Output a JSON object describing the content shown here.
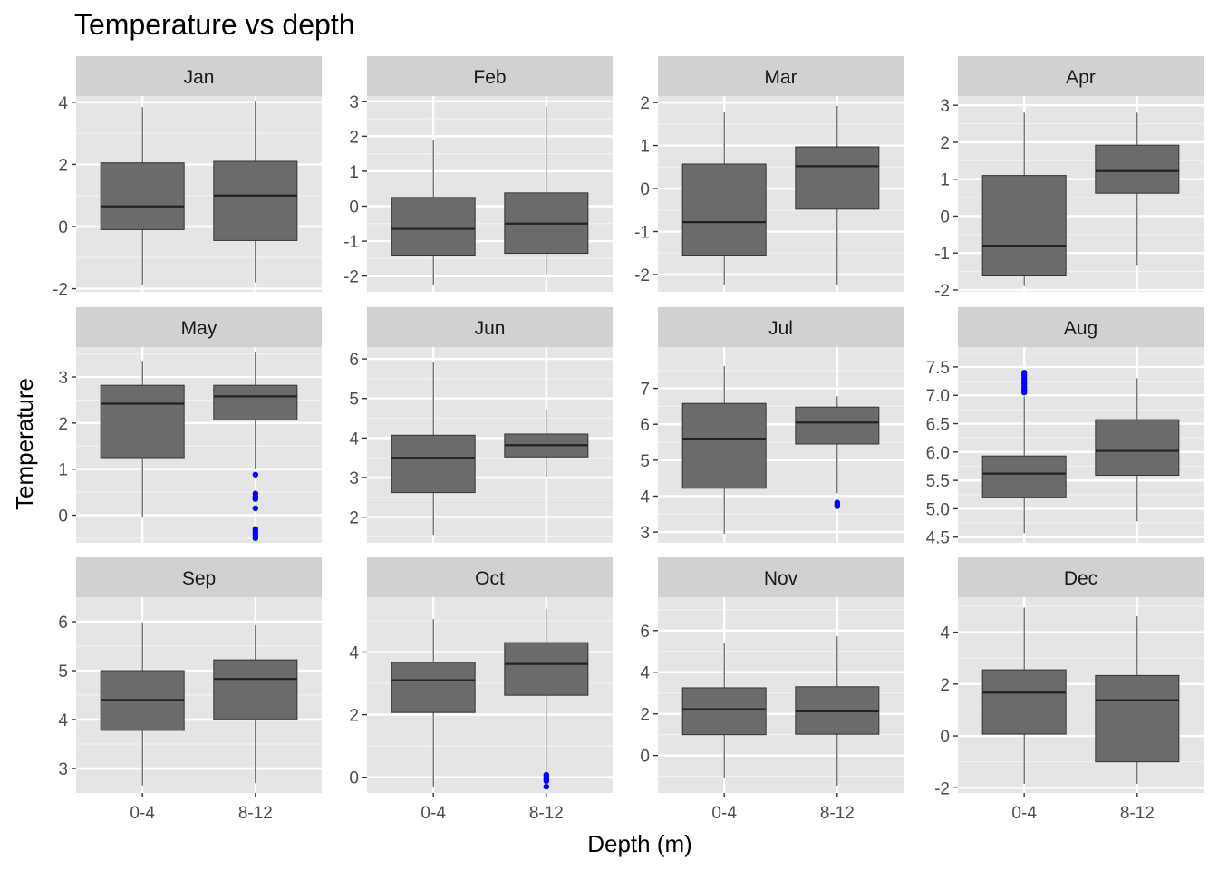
{
  "chart_data": {
    "type": "boxplot",
    "title": "Temperature vs depth",
    "xlabel": "Depth (m)",
    "ylabel": "Temperature",
    "categories": [
      "0-4",
      "8-12"
    ],
    "grid": true,
    "outlier_color": "#0000ff",
    "box_fill": "#6b6b6b",
    "panel_bg": "#e5e5e5",
    "strip_bg": "#d1d1d1",
    "panels": [
      {
        "month": "Jan",
        "ylim": [
          -2.1,
          4.2
        ],
        "yticks": [
          "-2",
          "0",
          "2",
          "4"
        ],
        "boxes": [
          {
            "category": "0-4",
            "min": -1.9,
            "q1": -0.1,
            "median": 0.65,
            "q3": 2.05,
            "max": 3.85,
            "outliers": []
          },
          {
            "category": "8-12",
            "min": -1.8,
            "q1": -0.45,
            "median": 1.0,
            "q3": 2.1,
            "max": 4.05,
            "outliers": []
          }
        ]
      },
      {
        "month": "Feb",
        "ylim": [
          -2.45,
          3.15
        ],
        "yticks": [
          "-2",
          "-1",
          "0",
          "1",
          "2",
          "3"
        ],
        "boxes": [
          {
            "category": "0-4",
            "min": -2.25,
            "q1": -1.4,
            "median": -0.65,
            "q3": 0.25,
            "max": 1.9,
            "outliers": []
          },
          {
            "category": "8-12",
            "min": -1.95,
            "q1": -1.35,
            "median": -0.5,
            "q3": 0.38,
            "max": 2.85,
            "outliers": []
          }
        ]
      },
      {
        "month": "Mar",
        "ylim": [
          -2.4,
          2.15
        ],
        "yticks": [
          "-2",
          "-1",
          "0",
          "1",
          "2"
        ],
        "boxes": [
          {
            "category": "0-4",
            "min": -2.25,
            "q1": -1.55,
            "median": -0.78,
            "q3": 0.57,
            "max": 1.77,
            "outliers": []
          },
          {
            "category": "8-12",
            "min": -2.25,
            "q1": -0.48,
            "median": 0.52,
            "q3": 0.97,
            "max": 1.92,
            "outliers": []
          }
        ]
      },
      {
        "month": "Apr",
        "ylim": [
          -2.05,
          3.25
        ],
        "yticks": [
          "-2",
          "-1",
          "0",
          "1",
          "2",
          "3"
        ],
        "boxes": [
          {
            "category": "0-4",
            "min": -1.9,
            "q1": -1.62,
            "median": -0.8,
            "q3": 1.1,
            "max": 2.8,
            "outliers": []
          },
          {
            "category": "8-12",
            "min": -1.32,
            "q1": 0.62,
            "median": 1.22,
            "q3": 1.92,
            "max": 2.8,
            "outliers": []
          }
        ]
      },
      {
        "month": "May",
        "ylim": [
          -0.6,
          3.65
        ],
        "yticks": [
          "0",
          "1",
          "2",
          "3"
        ],
        "boxes": [
          {
            "category": "0-4",
            "min": -0.05,
            "q1": 1.25,
            "median": 2.42,
            "q3": 2.82,
            "max": 3.35,
            "outliers": []
          },
          {
            "category": "8-12",
            "min": 1.0,
            "q1": 2.07,
            "median": 2.58,
            "q3": 2.82,
            "max": 3.55,
            "outliers": [
              0.88,
              0.47,
              0.4,
              0.35,
              0.15,
              -0.3,
              -0.35,
              -0.4,
              -0.45,
              -0.5
            ]
          }
        ]
      },
      {
        "month": "Jun",
        "ylim": [
          1.35,
          6.3
        ],
        "yticks": [
          "2",
          "3",
          "4",
          "5",
          "6"
        ],
        "boxes": [
          {
            "category": "0-4",
            "min": 1.55,
            "q1": 2.62,
            "median": 3.5,
            "q3": 4.07,
            "max": 5.93,
            "outliers": []
          },
          {
            "category": "8-12",
            "min": 3.02,
            "q1": 3.52,
            "median": 3.82,
            "q3": 4.1,
            "max": 4.72,
            "outliers": []
          }
        ]
      },
      {
        "month": "Jul",
        "ylim": [
          2.7,
          8.15
        ],
        "yticks": [
          "3",
          "4",
          "5",
          "6",
          "7"
        ],
        "boxes": [
          {
            "category": "0-4",
            "min": 2.95,
            "q1": 4.22,
            "median": 5.6,
            "q3": 6.58,
            "max": 7.62,
            "outliers": []
          },
          {
            "category": "8-12",
            "min": 4.08,
            "q1": 5.45,
            "median": 6.05,
            "q3": 6.48,
            "max": 6.78,
            "outliers": [
              3.82,
              3.77,
              3.72
            ]
          }
        ]
      },
      {
        "month": "Aug",
        "ylim": [
          4.4,
          7.85
        ],
        "yticks": [
          "4.5",
          "5.0",
          "5.5",
          "6.0",
          "6.5",
          "7.0",
          "7.5"
        ],
        "boxes": [
          {
            "category": "0-4",
            "min": 4.57,
            "q1": 5.2,
            "median": 5.62,
            "q3": 5.93,
            "max": 6.98,
            "outliers": [
              7.05,
              7.1,
              7.15,
              7.2,
              7.25,
              7.3,
              7.35,
              7.4
            ]
          },
          {
            "category": "8-12",
            "min": 4.78,
            "q1": 5.59,
            "median": 6.02,
            "q3": 6.57,
            "max": 7.3,
            "outliers": []
          }
        ]
      },
      {
        "month": "Sep",
        "ylim": [
          2.5,
          6.5
        ],
        "yticks": [
          "3",
          "4",
          "5",
          "6"
        ],
        "boxes": [
          {
            "category": "0-4",
            "min": 2.65,
            "q1": 3.78,
            "median": 4.4,
            "q3": 5.0,
            "max": 5.97,
            "outliers": []
          },
          {
            "category": "8-12",
            "min": 2.7,
            "q1": 4.0,
            "median": 4.83,
            "q3": 5.22,
            "max": 5.93,
            "outliers": []
          }
        ]
      },
      {
        "month": "Oct",
        "ylim": [
          -0.5,
          5.75
        ],
        "yticks": [
          "0",
          "2",
          "4"
        ],
        "boxes": [
          {
            "category": "0-4",
            "min": -0.3,
            "q1": 2.07,
            "median": 3.1,
            "q3": 3.67,
            "max": 5.05,
            "outliers": []
          },
          {
            "category": "8-12",
            "min": 0.15,
            "q1": 2.62,
            "median": 3.62,
            "q3": 4.3,
            "max": 5.38,
            "outliers": [
              0.08,
              0.03,
              -0.02,
              -0.07,
              -0.12,
              -0.3
            ]
          }
        ]
      },
      {
        "month": "Nov",
        "ylim": [
          -1.8,
          7.6
        ],
        "yticks": [
          "0",
          "2",
          "4",
          "6"
        ],
        "boxes": [
          {
            "category": "0-4",
            "min": -1.1,
            "q1": 1.0,
            "median": 2.22,
            "q3": 3.25,
            "max": 5.42,
            "outliers": []
          },
          {
            "category": "8-12",
            "min": -1.45,
            "q1": 1.02,
            "median": 2.12,
            "q3": 3.3,
            "max": 5.72,
            "outliers": []
          }
        ]
      },
      {
        "month": "Dec",
        "ylim": [
          -2.2,
          5.35
        ],
        "yticks": [
          "-2",
          "0",
          "2",
          "4"
        ],
        "boxes": [
          {
            "category": "0-4",
            "min": -1.85,
            "q1": 0.07,
            "median": 1.67,
            "q3": 2.55,
            "max": 4.95,
            "outliers": []
          },
          {
            "category": "8-12",
            "min": -1.85,
            "q1": -1.0,
            "median": 1.38,
            "q3": 2.33,
            "max": 4.62,
            "outliers": []
          }
        ]
      }
    ]
  }
}
